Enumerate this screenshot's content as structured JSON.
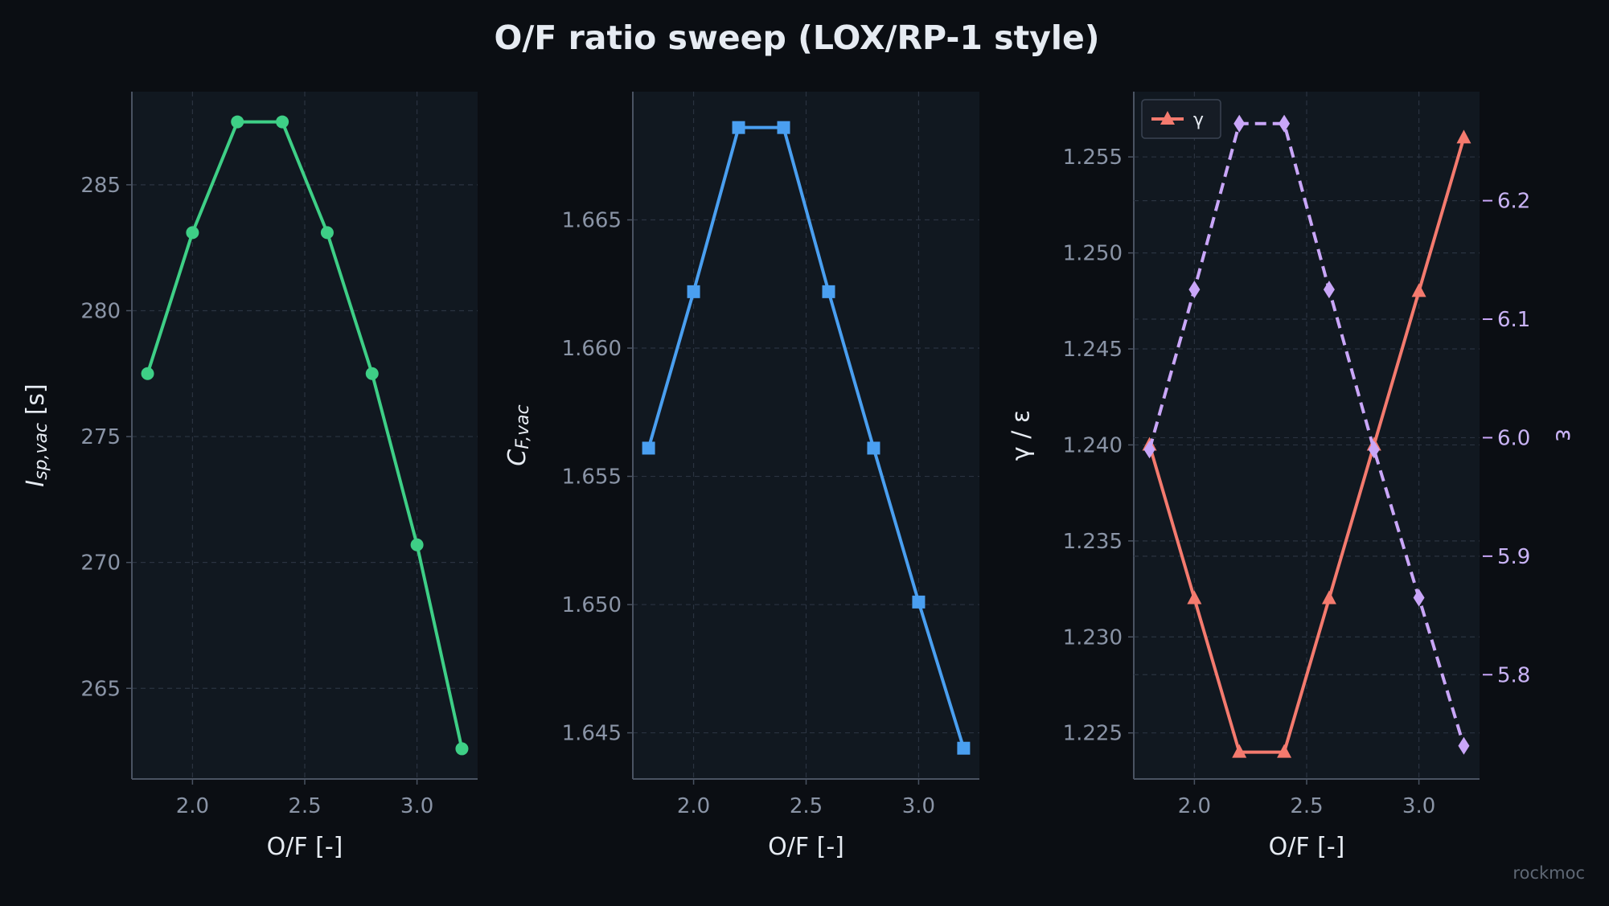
{
  "title": "O/F ratio sweep (LOX/RP-1 style)",
  "watermark": "rockmoc",
  "colors": {
    "background": "#0b0e13",
    "panel": "#111820",
    "grid": "#2a3340",
    "spine": "#4a5362",
    "isp": "#3ecf86",
    "cf": "#4a9ff0",
    "gamma": "#f47a6e",
    "eps": "#c9a6f8"
  },
  "chart_data": [
    {
      "type": "line",
      "xlabel": "O/F [-]",
      "ylabel": "I_{sp,vac} [s]",
      "x": [
        1.8,
        2.0,
        2.2,
        2.4,
        2.6,
        2.8,
        3.0,
        3.2
      ],
      "xlim": [
        1.73,
        3.27
      ],
      "ylim": [
        261.4,
        288.7
      ],
      "xticks": [
        "2.0",
        "2.5",
        "3.0"
      ],
      "yticks": [
        "265",
        "270",
        "275",
        "280",
        "285"
      ],
      "grid": true,
      "series": [
        {
          "marker": "circle",
          "values": [
            277.5,
            283.1,
            287.5,
            287.5,
            283.1,
            277.5,
            270.7,
            262.6
          ]
        }
      ]
    },
    {
      "type": "line",
      "xlabel": "O/F [-]",
      "ylabel": "C_{F,vac}",
      "x": [
        1.8,
        2.0,
        2.2,
        2.4,
        2.6,
        2.8,
        3.0,
        3.2
      ],
      "xlim": [
        1.73,
        3.27
      ],
      "ylim": [
        1.6432,
        1.67
      ],
      "xticks": [
        "2.0",
        "2.5",
        "3.0"
      ],
      "yticks": [
        "1.645",
        "1.650",
        "1.655",
        "1.660",
        "1.665"
      ],
      "grid": true,
      "series": [
        {
          "marker": "square",
          "values": [
            1.6561,
            1.6622,
            1.6686,
            1.6686,
            1.6622,
            1.6561,
            1.6501,
            1.6444
          ]
        }
      ]
    },
    {
      "type": "line",
      "xlabel": "O/F [-]",
      "ylabel": "γ / ε",
      "y2label": "ε",
      "x": [
        1.8,
        2.0,
        2.2,
        2.4,
        2.6,
        2.8,
        3.0,
        3.2
      ],
      "xlim": [
        1.73,
        3.27
      ],
      "ylim": [
        1.2226,
        1.2584
      ],
      "y2lim": [
        5.712,
        6.292
      ],
      "xticks": [
        "2.0",
        "2.5",
        "3.0"
      ],
      "yticks": [
        "1.225",
        "1.230",
        "1.235",
        "1.240",
        "1.245",
        "1.250",
        "1.255"
      ],
      "y2ticks": [
        "5.8",
        "5.9",
        "6.0",
        "6.1",
        "6.2"
      ],
      "legend": "top-left",
      "grid": true,
      "series": [
        {
          "name": "γ",
          "axis": "left",
          "marker": "triangle",
          "style": "solid",
          "values": [
            1.24,
            1.232,
            1.224,
            1.224,
            1.232,
            1.24,
            1.248,
            1.256
          ]
        },
        {
          "axis": "right",
          "marker": "diamond",
          "style": "dashed",
          "values": [
            5.99,
            6.125,
            6.265,
            6.265,
            6.125,
            5.99,
            5.865,
            5.74
          ]
        }
      ]
    }
  ]
}
